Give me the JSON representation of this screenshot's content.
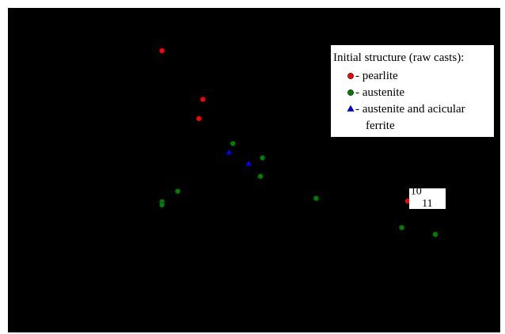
{
  "colors": {
    "background": "#000000",
    "legend_box": "#ffffff",
    "pearlite": "#ff0000",
    "austenite": "#008000",
    "austenite_acicular": "#0000ff"
  },
  "chart_data": {
    "type": "scatter",
    "title": "",
    "xlabel": "",
    "ylabel": "",
    "xlim": [
      0,
      100
    ],
    "ylim": [
      0,
      100
    ],
    "grid": false,
    "legend_position": "top-right",
    "legend": {
      "title": "Initial structure (raw casts):",
      "entries": [
        {
          "label": "- pearlite",
          "marker": "circle",
          "color": "#ff0000"
        },
        {
          "label": "- austenite",
          "marker": "circle",
          "color": "#008000"
        },
        {
          "label": "- austenite and acicular",
          "label_line2": "ferrite",
          "marker": "triangle",
          "color": "#0000ff"
        }
      ]
    },
    "series": [
      {
        "key": "pearlite",
        "marker": "circle",
        "color": "#ff0000",
        "points": [
          {
            "x": 31.3,
            "y": 86.8
          },
          {
            "x": 39.6,
            "y": 71.8
          },
          {
            "x": 38.8,
            "y": 65.9
          },
          {
            "x": 81.2,
            "y": 40.5
          }
        ]
      },
      {
        "key": "austenite",
        "marker": "circle",
        "color": "#008000",
        "points": [
          {
            "x": 45.7,
            "y": 58.2
          },
          {
            "x": 51.7,
            "y": 53.8
          },
          {
            "x": 51.3,
            "y": 48.1
          },
          {
            "x": 34.5,
            "y": 43.5
          },
          {
            "x": 31.3,
            "y": 40.3
          },
          {
            "x": 31.3,
            "y": 39.3
          },
          {
            "x": 62.6,
            "y": 41.3
          },
          {
            "x": 80.0,
            "y": 32.3
          },
          {
            "x": 86.8,
            "y": 30.2
          }
        ]
      },
      {
        "key": "austenite_acicular",
        "marker": "triangle",
        "color": "#0000ff",
        "points": [
          {
            "x": 44.9,
            "y": 55.5
          },
          {
            "x": 48.9,
            "y": 52.0
          },
          {
            "x": 82.4,
            "y": 40.9
          },
          {
            "x": 83.4,
            "y": 39.8
          }
        ]
      }
    ],
    "annotations": [
      {
        "text": "10",
        "x": 81.8,
        "y": 43.8
      },
      {
        "text": "11",
        "x": 84.1,
        "y": 40.0
      }
    ]
  }
}
